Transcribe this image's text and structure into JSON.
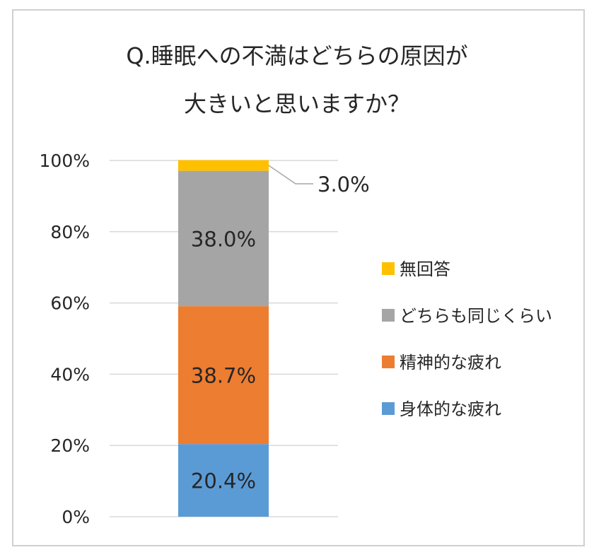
{
  "chart_data": {
    "type": "bar",
    "stacked": true,
    "title_lines": [
      "Q.睡眠への不満はどちらの原因が",
      "大きいと思いますか？"
    ],
    "categories": [
      ""
    ],
    "yticks": [
      "0%",
      "20%",
      "40%",
      "60%",
      "80%",
      "100%"
    ],
    "ylim": [
      0,
      100
    ],
    "grid": true,
    "legend_position": "right",
    "series": [
      {
        "name": "身体的な疲れ",
        "values": [
          20.4
        ],
        "label": "20.4%",
        "color": "#5b9bd5"
      },
      {
        "name": "精神的な疲れ",
        "values": [
          38.7
        ],
        "label": "38.7%",
        "color": "#ed7d31"
      },
      {
        "name": "どちらも同じくらい",
        "values": [
          38.0
        ],
        "label": "38.0%",
        "color": "#a5a5a5"
      },
      {
        "name": "無回答",
        "values": [
          3.0
        ],
        "label": "3.0%",
        "color": "#ffc000"
      }
    ]
  }
}
